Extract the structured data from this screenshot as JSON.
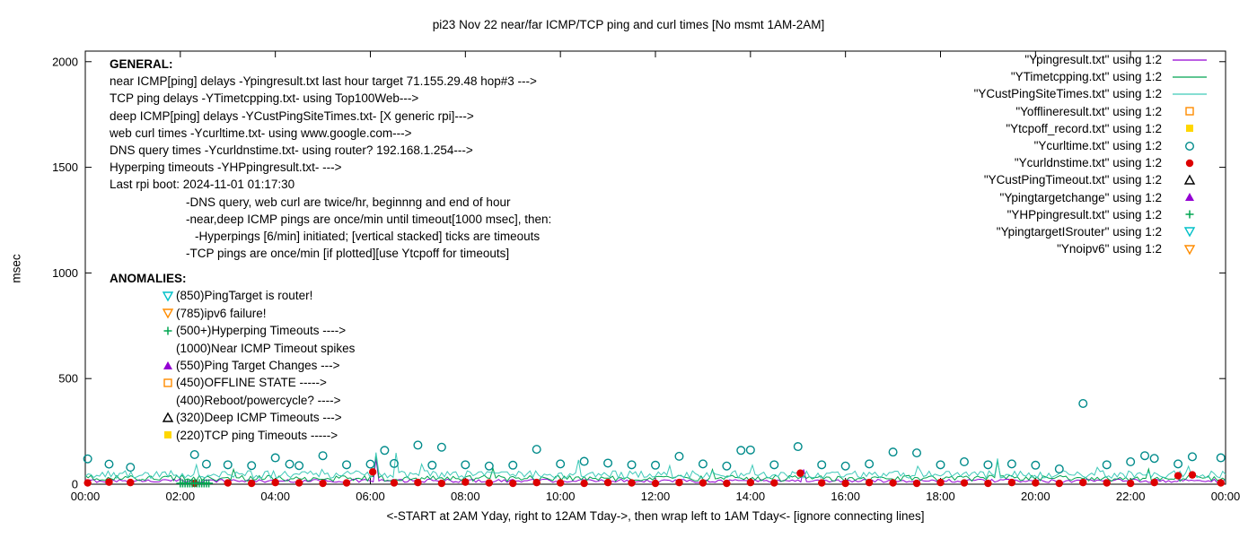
{
  "general": {
    "heading": "GENERAL:",
    "lines": [
      "near ICMP[ping] delays -Ypingresult.txt last hour target 71.155.29.48 hop#3 --->",
      "TCP ping delays -YTimetcpping.txt- using Top100Web--->",
      "deep ICMP[ping] delays -YCustPingSiteTimes.txt- [X generic rpi]--->",
      "web curl times -Ycurltime.txt- using www.google.com--->",
      "DNS query times -Ycurldnstime.txt- using router? 192.168.1.254--->",
      "Hyperping timeouts -YHPpingresult.txt- --->",
      "Last rpi boot: 2024-11-01 01:17:30"
    ],
    "notes": [
      "-DNS query, web curl are twice/hr, beginnng and end of hour",
      "-near,deep ICMP pings are once/min until timeout[1000 msec], then:",
      "-Hyperpings [6/min] initiated; [vertical stacked] ticks are timeouts",
      "-TCP pings are once/min [if plotted][use Ytcpoff for timeouts]"
    ]
  },
  "anomalies": {
    "heading": "ANOMALIES:",
    "items": [
      {
        "marker": "triangle-down-open",
        "color": "#00c0c8",
        "text": "(850)PingTarget is router!"
      },
      {
        "marker": "triangle-down-open",
        "color": "#ff8c00",
        "text": "(785)ipv6 failure!"
      },
      {
        "marker": "plus",
        "color": "#00a550",
        "text": "(500+)Hyperping Timeouts ---->"
      },
      {
        "marker": "none",
        "color": "#000000",
        "text": "(1000)Near ICMP Timeout spikes"
      },
      {
        "marker": "triangle-filled",
        "color": "#9400d3",
        "text": "(550)Ping Target Changes --->"
      },
      {
        "marker": "square-open",
        "color": "#ff8c00",
        "text": "(450)OFFLINE STATE ----->"
      },
      {
        "marker": "none",
        "color": "#000000",
        "text": "(400)Reboot/powercycle? ---->"
      },
      {
        "marker": "triangle-open",
        "color": "#000000",
        "text": "(320)Deep ICMP Timeouts --->"
      },
      {
        "marker": "square-filled",
        "color": "#ffd700",
        "text": "(220)TCP ping Timeouts ----->"
      }
    ]
  },
  "chart_data": {
    "type": "scatter",
    "title": "pi23 Nov 22  near/far ICMP/TCP ping and curl times [No msmt 1AM-2AM]",
    "xlabel": "<-START at 2AM Yday, right to 12AM Tday->, then wrap left to 1AM Tday<- [ignore connecting lines]",
    "ylabel": "msec",
    "xlim": [
      0,
      24
    ],
    "ylim": [
      0,
      2050
    ],
    "grid": false,
    "legend_position": "top-right",
    "x_tick_hours": [
      0,
      2,
      4,
      6,
      8,
      10,
      12,
      14,
      16,
      18,
      20,
      22,
      24
    ],
    "x_tick_labels": [
      "00:00",
      "02:00",
      "04:00",
      "06:00",
      "08:00",
      "10:00",
      "12:00",
      "14:00",
      "16:00",
      "18:00",
      "20:00",
      "22:00",
      "00:00"
    ],
    "y_ticks": [
      0,
      500,
      1000,
      1500,
      2000
    ],
    "series": [
      {
        "key": "Ypingresult",
        "legend": "\"Ypingresult.txt\" using 1:2",
        "style": "line",
        "color": "#9400d3",
        "baseline": 16,
        "noise": 8,
        "spikes": [
          [
            6.1,
            120
          ],
          [
            15.1,
            70
          ]
        ]
      },
      {
        "key": "YTimetcpping",
        "legend": "\"YTimetcpping.txt\" using 1:2",
        "style": "line",
        "color": "#00a550",
        "baseline": 28,
        "noise": 14,
        "spikes": [
          [
            3.1,
            70
          ],
          [
            6.1,
            140
          ],
          [
            8.6,
            75
          ],
          [
            13.2,
            70
          ],
          [
            19.2,
            110
          ],
          [
            22.4,
            72
          ]
        ]
      },
      {
        "key": "YCustPingSiteTimes",
        "legend": "\"YCustPingSiteTimes.txt\" using 1:2",
        "style": "line",
        "color": "#3ec9b8",
        "baseline": 46,
        "noise": 18,
        "spikes": [
          [
            2.35,
            92
          ],
          [
            5.0,
            70
          ],
          [
            6.1,
            150
          ],
          [
            6.55,
            148
          ],
          [
            7.05,
            95
          ],
          [
            10.35,
            115
          ],
          [
            12.3,
            88
          ],
          [
            14.05,
            90
          ],
          [
            17.5,
            85
          ],
          [
            19.2,
            122
          ],
          [
            21.3,
            80
          ],
          [
            23.2,
            85
          ]
        ]
      },
      {
        "key": "Yofflineresult",
        "legend": "\"Yofflineresult.txt\" using 1:2",
        "style": "points",
        "marker": "square-open",
        "color": "#ff8c00",
        "points": []
      },
      {
        "key": "Ytcpoff_record",
        "legend": "\"Ytcpoff_record.txt\" using 1:2",
        "style": "points",
        "marker": "square-filled",
        "color": "#ffd700",
        "points": []
      },
      {
        "key": "Ycurltime",
        "legend": "\"Ycurltime.txt\" using 1:2",
        "style": "points",
        "marker": "circle-open",
        "color": "#008b8b",
        "points": [
          [
            0.05,
            120
          ],
          [
            0.5,
            95
          ],
          [
            0.95,
            80
          ],
          [
            2.3,
            140
          ],
          [
            2.55,
            95
          ],
          [
            3.0,
            92
          ],
          [
            3.5,
            88
          ],
          [
            4.0,
            125
          ],
          [
            4.3,
            95
          ],
          [
            4.5,
            88
          ],
          [
            5.0,
            135
          ],
          [
            5.5,
            92
          ],
          [
            6.0,
            95
          ],
          [
            6.3,
            160
          ],
          [
            6.5,
            98
          ],
          [
            7.0,
            185
          ],
          [
            7.3,
            90
          ],
          [
            7.5,
            175
          ],
          [
            8.0,
            92
          ],
          [
            8.5,
            86
          ],
          [
            9.0,
            90
          ],
          [
            9.5,
            165
          ],
          [
            10.0,
            96
          ],
          [
            10.5,
            108
          ],
          [
            11.0,
            100
          ],
          [
            11.5,
            92
          ],
          [
            12.0,
            90
          ],
          [
            12.5,
            132
          ],
          [
            13.0,
            96
          ],
          [
            13.5,
            86
          ],
          [
            13.8,
            160
          ],
          [
            14.0,
            162
          ],
          [
            14.5,
            92
          ],
          [
            15.0,
            178
          ],
          [
            15.5,
            92
          ],
          [
            16.0,
            86
          ],
          [
            16.5,
            96
          ],
          [
            17.0,
            152
          ],
          [
            17.5,
            148
          ],
          [
            18.0,
            92
          ],
          [
            18.5,
            106
          ],
          [
            19.0,
            92
          ],
          [
            19.5,
            96
          ],
          [
            20.0,
            90
          ],
          [
            20.5,
            72
          ],
          [
            21.0,
            382
          ],
          [
            21.5,
            92
          ],
          [
            22.0,
            106
          ],
          [
            22.3,
            135
          ],
          [
            22.5,
            122
          ],
          [
            23.0,
            96
          ],
          [
            23.3,
            130
          ],
          [
            23.9,
            125
          ]
        ]
      },
      {
        "key": "Ycurldnstime",
        "legend": "\"Ycurldnstime.txt\" using 1:2",
        "style": "points",
        "marker": "circle-filled",
        "color": "#dd0000",
        "points": [
          [
            0.05,
            6
          ],
          [
            0.5,
            10
          ],
          [
            0.95,
            8
          ],
          [
            2.3,
            4
          ],
          [
            3.0,
            6
          ],
          [
            3.5,
            4
          ],
          [
            4.0,
            8
          ],
          [
            4.5,
            6
          ],
          [
            5.0,
            4
          ],
          [
            5.5,
            6
          ],
          [
            6.05,
            58
          ],
          [
            6.5,
            6
          ],
          [
            7.0,
            8
          ],
          [
            7.5,
            4
          ],
          [
            8.0,
            10
          ],
          [
            8.5,
            6
          ],
          [
            9.0,
            4
          ],
          [
            9.5,
            8
          ],
          [
            10.0,
            6
          ],
          [
            10.5,
            4
          ],
          [
            11.0,
            8
          ],
          [
            11.5,
            6
          ],
          [
            12.0,
            4
          ],
          [
            12.5,
            8
          ],
          [
            13.0,
            6
          ],
          [
            13.5,
            4
          ],
          [
            14.0,
            8
          ],
          [
            14.5,
            6
          ],
          [
            15.05,
            52
          ],
          [
            15.5,
            6
          ],
          [
            16.0,
            4
          ],
          [
            16.5,
            8
          ],
          [
            17.0,
            6
          ],
          [
            17.5,
            4
          ],
          [
            18.0,
            8
          ],
          [
            18.5,
            6
          ],
          [
            19.0,
            4
          ],
          [
            19.5,
            8
          ],
          [
            20.0,
            6
          ],
          [
            20.5,
            4
          ],
          [
            21.0,
            8
          ],
          [
            21.5,
            6
          ],
          [
            22.0,
            4
          ],
          [
            22.5,
            8
          ],
          [
            23.0,
            40
          ],
          [
            23.3,
            44
          ],
          [
            23.9,
            6
          ]
        ]
      },
      {
        "key": "YCustPingTimeout",
        "legend": "\"YCustPingTimeout.txt\" using 1:2",
        "style": "points",
        "marker": "triangle-open",
        "color": "#000000",
        "points": []
      },
      {
        "key": "Ypingtargetchange",
        "legend": "\"Ypingtargetchange\" using 1:2",
        "style": "points",
        "marker": "triangle-filled",
        "color": "#9400d3",
        "points": []
      },
      {
        "key": "YHPpingresult",
        "legend": "\"YHPpingresult.txt\" using 1:2",
        "style": "points",
        "marker": "plus",
        "color": "#00a550",
        "points": [
          [
            2.0,
            4
          ],
          [
            2.05,
            4
          ],
          [
            2.1,
            4
          ],
          [
            2.15,
            4
          ],
          [
            2.2,
            4
          ],
          [
            2.25,
            4
          ],
          [
            2.3,
            4
          ],
          [
            2.35,
            4
          ],
          [
            2.4,
            4
          ],
          [
            2.45,
            4
          ],
          [
            2.5,
            4
          ],
          [
            2.55,
            4
          ],
          [
            2.6,
            4
          ]
        ]
      },
      {
        "key": "YpingtargetISrouter",
        "legend": "\"YpingtargetISrouter\" using 1:2",
        "style": "points",
        "marker": "triangle-down-open",
        "color": "#00c0c8",
        "points": []
      },
      {
        "key": "Ynoipv6",
        "legend": "\"Ynoipv6\" using 1:2",
        "style": "points",
        "marker": "triangle-down-open",
        "color": "#ff8c00",
        "points": []
      }
    ]
  }
}
